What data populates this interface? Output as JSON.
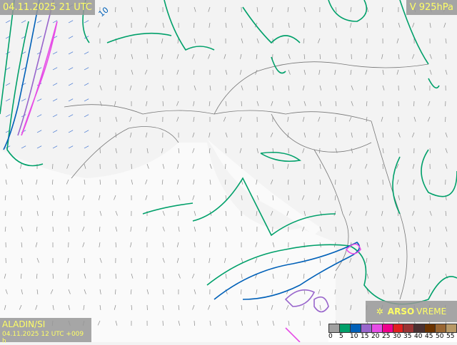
{
  "header": {
    "valid_time": "04.11.2025 21 UTC",
    "level": "V 925hPa"
  },
  "footer": {
    "model": "ALADIN/SI",
    "run": "04.11.2025 12 UTC +009 h",
    "brand_bold": "ARSO",
    "brand_rest": "VREME",
    "brand_icon": "sun-icon"
  },
  "contour_label": "10",
  "legend": {
    "ticks": [
      "0",
      "5",
      "10",
      "15",
      "20",
      "25",
      "30",
      "35",
      "40",
      "45",
      "50",
      "55"
    ],
    "colors": [
      "#a0a0a0",
      "#00a06a",
      "#0060b8",
      "#9966cc",
      "#e64de6",
      "#f0008c",
      "#e02020",
      "#993333",
      "#4a3030",
      "#6b3300",
      "#996633",
      "#b89966"
    ]
  },
  "colors": {
    "label_text": "#ffff66",
    "label_bg": "#969696",
    "land": "#f3f3f3",
    "sea": "#fafafa"
  }
}
